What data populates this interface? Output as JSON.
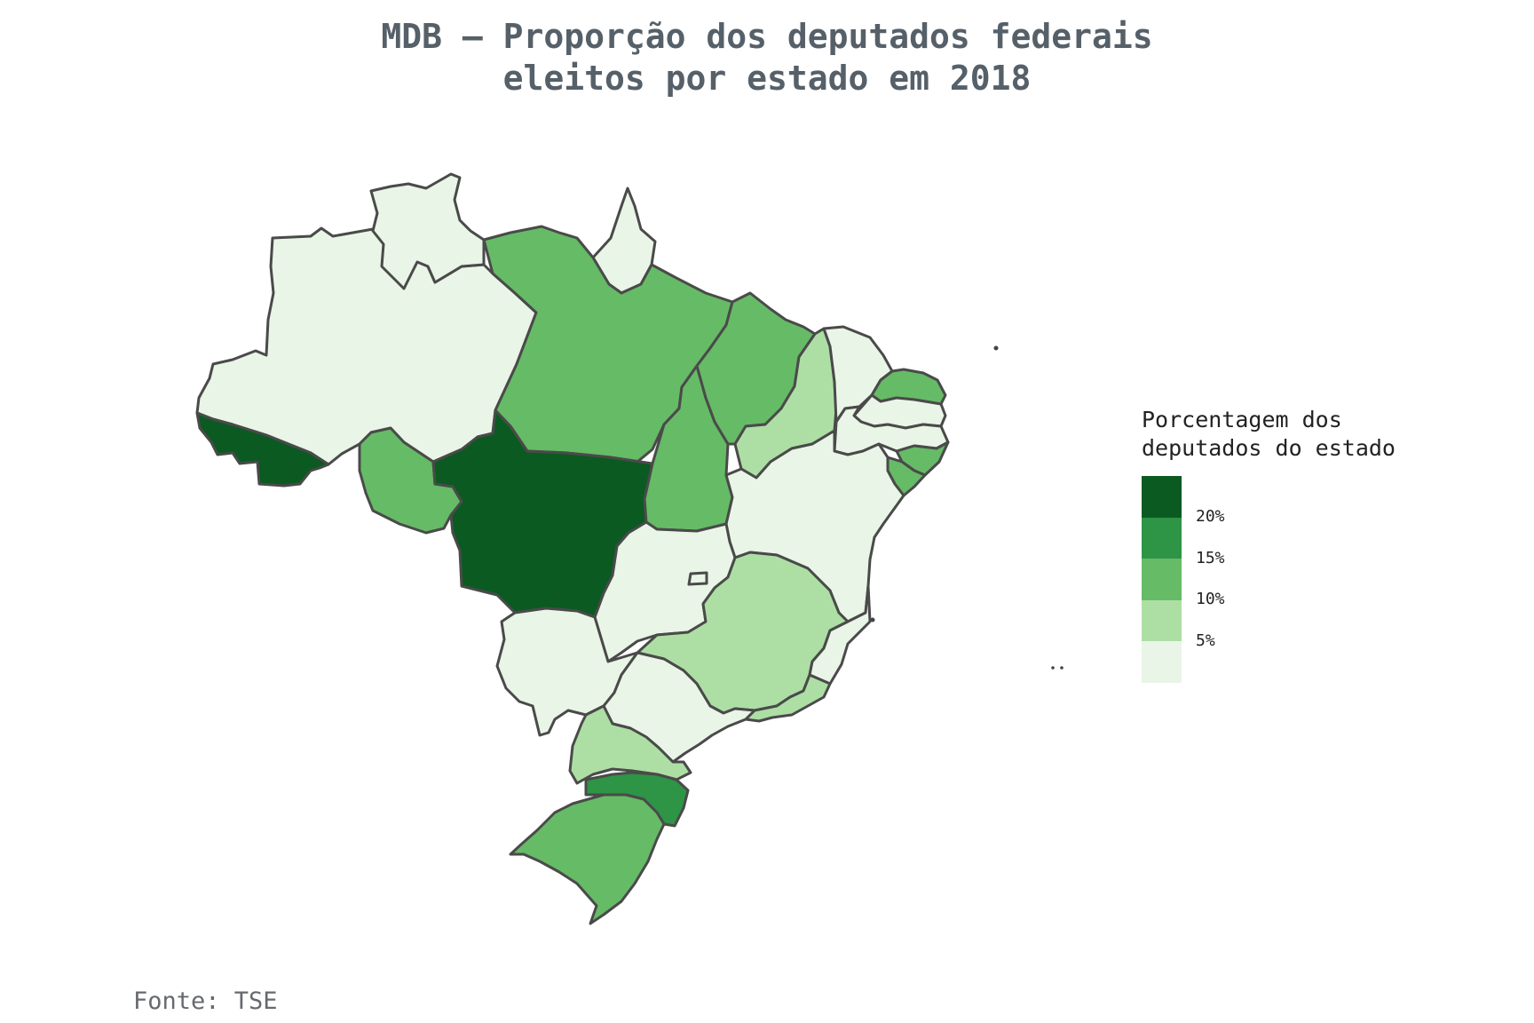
{
  "title": {
    "line1": "MDB – Proporção dos deputados federais",
    "line2": "eleitos por estado em 2018"
  },
  "colors": {
    "bin_0_5": "#e9f5e6",
    "bin_5_10": "#addfa5",
    "bin_10_15": "#66bb66",
    "bin_15_20": "#2e9446",
    "bin_20_plus": "#0b5a22",
    "border": "#4a4a4a",
    "title_text": "#566069"
  },
  "legend": {
    "title_line1": "Porcentagem dos",
    "title_line2": "deputados do estado",
    "labels": [
      "20%",
      "15%",
      "10%",
      "5%"
    ],
    "bins": [
      "bin_20_plus",
      "bin_15_20",
      "bin_10_15",
      "bin_5_10",
      "bin_0_5"
    ]
  },
  "map_data": {
    "type": "choropleth",
    "region": "Brasil",
    "states": {
      "AC": "bin_20_plus",
      "AM": "bin_0_5",
      "RR": "bin_0_5",
      "AP": "bin_0_5",
      "PA": "bin_10_15",
      "RO": "bin_10_15",
      "MT": "bin_20_plus",
      "TO": "bin_10_15",
      "MA": "bin_10_15",
      "PI": "bin_5_10",
      "CE": "bin_0_5",
      "RN": "bin_10_15",
      "PB": "bin_0_5",
      "PE": "bin_0_5",
      "AL": "bin_10_15",
      "SE": "bin_10_15",
      "BA": "bin_0_5",
      "GO": "bin_0_5",
      "DF": "bin_0_5",
      "MS": "bin_0_5",
      "MG": "bin_5_10",
      "ES": "bin_0_5",
      "RJ": "bin_5_10",
      "SP": "bin_0_5",
      "PR": "bin_5_10",
      "SC": "bin_15_20",
      "RS": "bin_10_15"
    }
  },
  "source": "Fonte: TSE"
}
